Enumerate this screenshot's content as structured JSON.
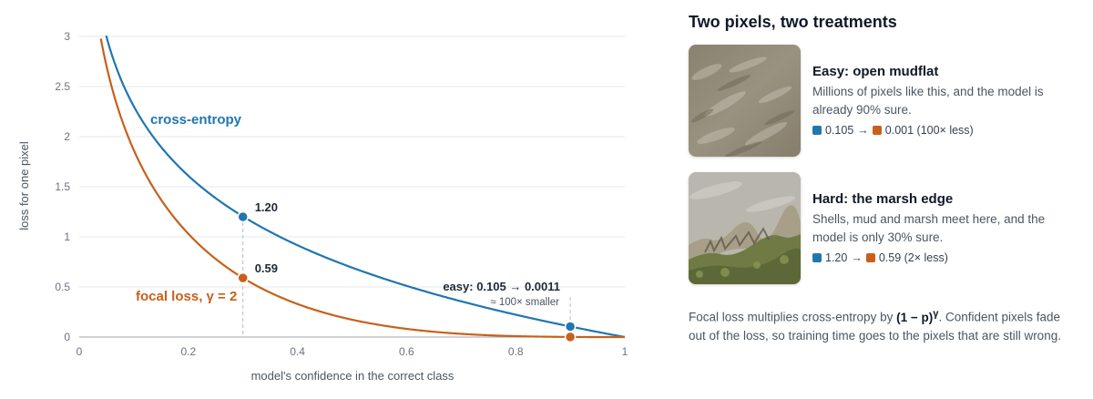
{
  "colors": {
    "cross_entropy": "#2176ae",
    "focal": "#c8601a",
    "grid": "#e5e7eb",
    "axis": "#9ca3af"
  },
  "chart_data": {
    "type": "line",
    "title": "",
    "xlabel": "model's confidence in the correct class",
    "ylabel": "loss for one pixel",
    "xlim": [
      0,
      1
    ],
    "ylim": [
      0,
      3
    ],
    "grid": true,
    "x_ticks": [
      "0",
      "0.2",
      "0.4",
      "0.6",
      "0.8",
      "1"
    ],
    "y_ticks": [
      "0",
      "0.5",
      "1",
      "1.5",
      "2",
      "2.5",
      "3"
    ],
    "series": [
      {
        "name": "cross-entropy",
        "gamma": 0
      },
      {
        "name": "focal loss, γ = 2",
        "gamma": 2
      }
    ],
    "points": [
      {
        "x": 0.3,
        "y": 1.2,
        "series": "cross-entropy",
        "label": "1.20"
      },
      {
        "x": 0.3,
        "y": 0.59,
        "series": "focal",
        "label": "0.59"
      },
      {
        "x": 0.9,
        "y": 0.105,
        "series": "cross-entropy",
        "label": ""
      },
      {
        "x": 0.9,
        "y": 0.0011,
        "series": "focal",
        "label": ""
      }
    ],
    "annotation": {
      "main": "easy: 0.105 → 0.0011",
      "sub": "≈ 100× smaller"
    }
  },
  "panel": {
    "title": "Two pixels, two treatments",
    "cards": [
      {
        "image": "mudflat-image",
        "title": "Easy: open mudflat",
        "description": "Millions of pixels like this, and the model is already 90% sure.",
        "ce_value": "0.105",
        "arrow": "→",
        "focal_value": "0.001 (100× less)"
      },
      {
        "image": "marsh-edge-image",
        "title": "Hard: the marsh edge",
        "description": "Shells, mud and marsh meet here, and the model is only 30% sure.",
        "ce_value": "1.20",
        "arrow": "→",
        "focal_value": "0.59 (2× less)"
      }
    ],
    "footnote": {
      "before": "Focal loss multiplies cross-entropy by ",
      "formula": "(1 − p)",
      "exponent": "γ",
      "after": ". Confident pixels fade out of the loss, so training time goes to the pixels that are still wrong."
    }
  }
}
